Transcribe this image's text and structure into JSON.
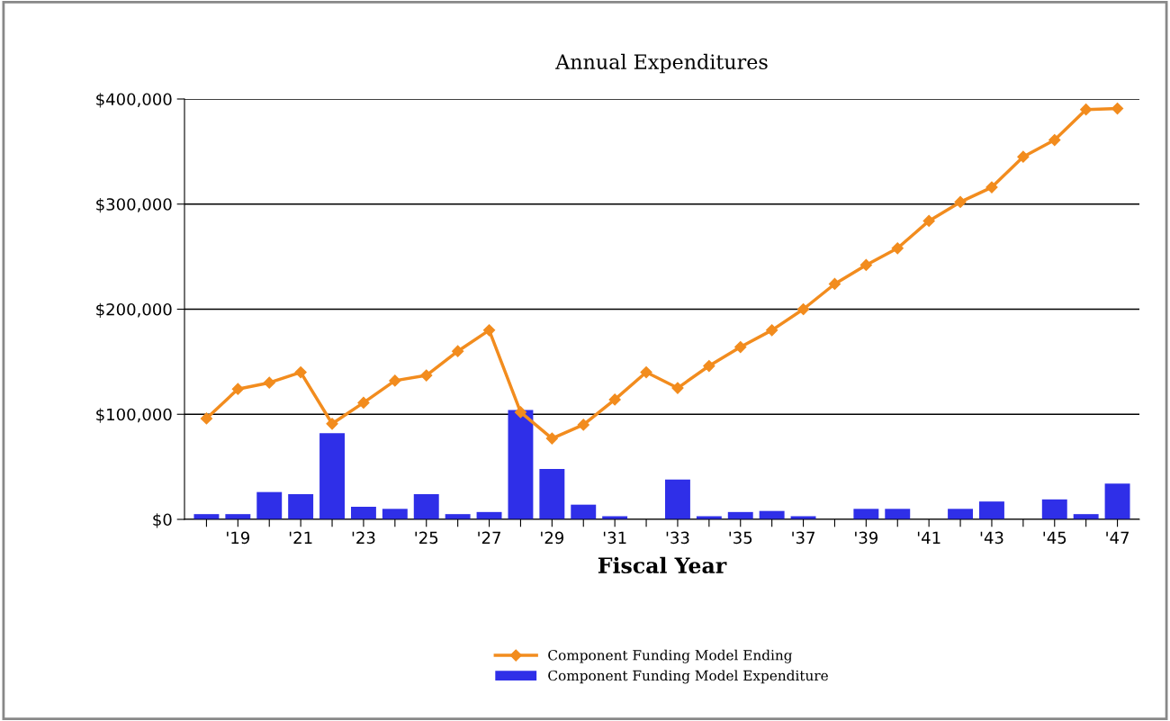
{
  "chart_data": {
    "type": "bar",
    "title": "Annual Expenditures",
    "xlabel": "Fiscal Year",
    "categories": [
      null,
      "'19",
      null,
      "'21",
      null,
      "'23",
      null,
      "'25",
      null,
      "'27",
      null,
      "'29",
      null,
      "'31",
      null,
      "'33",
      null,
      "'35",
      null,
      "'37",
      null,
      "'39",
      null,
      "'41",
      null,
      "'43",
      null,
      "'45",
      null,
      "'47"
    ],
    "series": [
      {
        "name": "Component Funding Model Ending",
        "type": "line",
        "color": "#f28c1e",
        "marker": "diamond",
        "line_style": "solid",
        "values": [
          96000,
          124000,
          130000,
          140000,
          91000,
          111000,
          132000,
          137000,
          160000,
          180000,
          102000,
          77000,
          90000,
          114000,
          140000,
          125000,
          146000,
          164000,
          180000,
          200000,
          224000,
          242000,
          258000,
          284000,
          302000,
          316000,
          345000,
          361000,
          390000,
          391000
        ]
      },
      {
        "name": "Component Funding Model Expenditure",
        "color": "#2f2fe8",
        "values": [
          5000,
          5000,
          26000,
          24000,
          82000,
          12000,
          10000,
          24000,
          5000,
          7000,
          104000,
          48000,
          14000,
          3000,
          null,
          38000,
          3000,
          7000,
          8000,
          3000,
          null,
          10000,
          10000,
          null,
          10000,
          17000,
          null,
          19000,
          5000,
          34000
        ]
      }
    ],
    "ylim": [
      0,
      400000
    ],
    "yticks": [
      {
        "value": 0,
        "label": "$0"
      },
      {
        "value": 100000,
        "label": "$100,000"
      },
      {
        "value": 200000,
        "label": "$200,000"
      },
      {
        "value": 300000,
        "label": "$300,000"
      },
      {
        "value": 400000,
        "label": "$400,000"
      }
    ],
    "grid": "y",
    "legend": "bottom"
  }
}
